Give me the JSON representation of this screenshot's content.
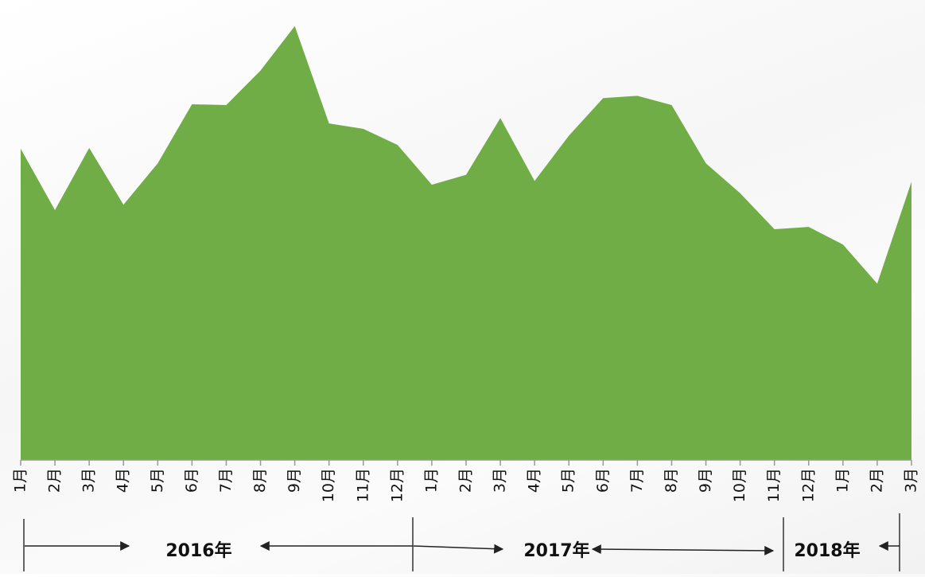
{
  "chart_data": {
    "type": "area",
    "color": "#70ad47",
    "ylim": [
      0,
      600
    ],
    "groups": [
      {
        "label": "2016年",
        "categories": [
          "1月",
          "2月",
          "3月",
          "4月",
          "5月",
          "6月",
          "7月",
          "8月",
          "9月",
          "10月",
          "11月",
          "12月"
        ],
        "values": [
          406,
          326,
          407,
          333,
          387,
          464,
          463,
          508,
          566,
          439,
          432,
          411
        ]
      },
      {
        "label": "2017年",
        "categories": [
          "1月",
          "2月",
          "3月",
          "4月",
          "5月",
          "6月",
          "7月",
          "8月",
          "9月",
          "10月",
          "11月",
          "12月"
        ],
        "values": [
          359,
          372,
          446,
          364,
          423,
          472,
          475,
          463,
          387,
          348,
          301,
          304
        ]
      },
      {
        "label": "2018年",
        "categories": [
          "1月",
          "2月",
          "3月"
        ],
        "values": [
          281,
          230,
          363
        ]
      }
    ]
  }
}
